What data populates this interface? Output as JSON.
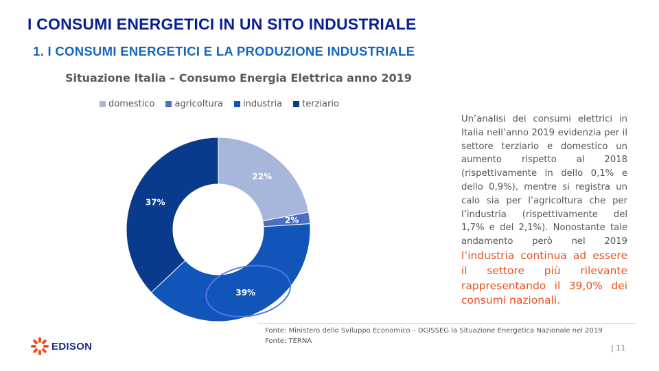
{
  "header": {
    "title": "I CONSUMI ENERGETICI IN UN SITO INDUSTRIALE",
    "subtitle": "1. I CONSUMI  ENERGETICI  E LA PRODUZIONE  INDUSTRIALE"
  },
  "chart_data": {
    "type": "pie",
    "variant": "donut",
    "title": "Situazione  Italia – Consumo  Energia  Elettrica anno  2019",
    "categories": [
      "domestico",
      "agricoltura",
      "industria",
      "terziario"
    ],
    "values": [
      22,
      2,
      39,
      37
    ],
    "labels": [
      "22%",
      "2%",
      "39%",
      "37%"
    ],
    "colors": [
      "#a9b6dc",
      "#4a6fc0",
      "#1155b8",
      "#0a3a8c"
    ],
    "legend_position": "top",
    "highlight": "industria",
    "highlight_color": "#5577e6"
  },
  "body": {
    "text_plain": "Un’analisi dei consumi elettrici in Italia nell’anno 2019 evidenzia per il settore terziario e domestico un aumento rispetto al 2018 (rispettivamente in dello 0,1% e dello 0,9%), mentre si registra un calo sia per l’agricoltura che per  l’industria (rispettivamente del 1,7% e del 2,1%). Nonostante tale andamento però nel 2019",
    "text_highlight": "l’industria continua ad essere il settore più rilevante rappresentando il 39,0% dei consumi nazionali."
  },
  "footer": {
    "source1": "Fonte:  Ministero dello Sviluppo Economico – DGISSEG  la Situazione Energetica Nazionale nel 2019",
    "source2": "Fonte:  TERNA",
    "page": "| 11",
    "logo": "EDISON",
    "logo_color": "#1a2b8f",
    "logo_accent": "#e8511c"
  }
}
